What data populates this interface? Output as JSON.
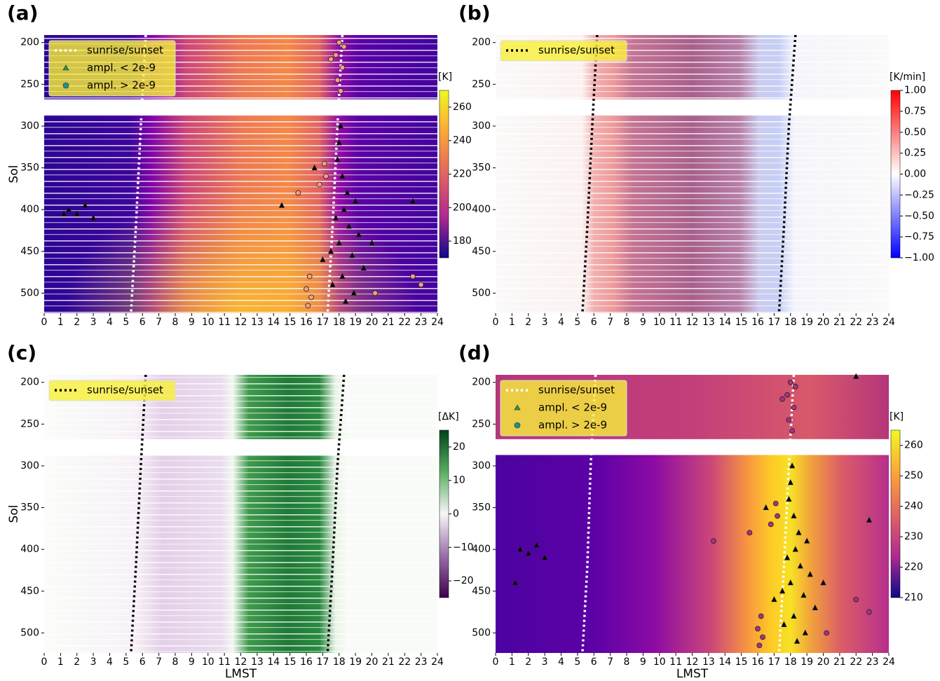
{
  "chart_data": [
    {
      "type": "heatmap",
      "panel_label": "(a)",
      "y_label": "Sol",
      "colormap": "plasma",
      "legend_loc": "upper left",
      "xlim": [
        0,
        24
      ],
      "xticks": [
        0,
        1,
        2,
        3,
        4,
        5,
        6,
        7,
        8,
        9,
        10,
        11,
        12,
        13,
        14,
        15,
        16,
        17,
        18,
        19,
        20,
        21,
        22,
        23,
        24
      ],
      "ylim": [
        524,
        191
      ],
      "yticks": [
        200,
        250,
        300,
        350,
        400,
        450,
        500
      ],
      "colorbar": {
        "label": "[K]",
        "lim": [
          170,
          270
        ],
        "ticks": [
          180,
          200,
          220,
          240,
          260
        ]
      },
      "missing_sols": [
        [
          268,
          287
        ]
      ],
      "series": [
        {
          "name": "sunrise/sunset",
          "color": "#ffffff",
          "linestyle": "dotted",
          "x": [
            6.2,
            5.9,
            5.6,
            5.3,
            null,
            18.2,
            17.9,
            17.6,
            17.3
          ],
          "y": [
            191,
            300,
            420,
            524,
            null,
            191,
            300,
            420,
            524
          ]
        },
        {
          "name": "ampl. < 2e-9",
          "color": "#000000",
          "legend_color": "#2a9a4a",
          "marker": "triangle",
          "x": [
            18.1,
            18.0,
            17.9,
            18.2,
            18.5,
            19.0,
            18.3,
            17.8,
            18.6,
            19.2,
            18.0,
            17.5,
            18.8,
            19.5,
            18.2,
            17.6,
            18.9,
            18.4,
            1.5,
            2.0,
            2.5,
            3.0,
            1.2,
            14.5,
            22.5,
            20.0,
            17.0,
            16.5
          ],
          "y": [
            300,
            320,
            340,
            360,
            380,
            390,
            400,
            410,
            420,
            430,
            440,
            450,
            455,
            470,
            480,
            490,
            500,
            510,
            400,
            405,
            395,
            410,
            405,
            395,
            390,
            440,
            460,
            350
          ]
        },
        {
          "name": "ampl. > 2e-9",
          "color": "#f4a07a",
          "legend_color": "#21918c",
          "marker": "circle",
          "x": [
            18.0,
            17.8,
            18.2,
            17.9,
            18.1,
            17.5,
            18.3,
            17.2,
            16.8,
            15.5,
            16.2,
            16.0,
            16.3,
            16.1,
            22.5,
            23.0,
            20.2,
            17.1
          ],
          "y": [
            200,
            215,
            230,
            245,
            258,
            220,
            205,
            360,
            370,
            380,
            480,
            495,
            505,
            515,
            480,
            490,
            500,
            345
          ]
        }
      ]
    },
    {
      "type": "heatmap",
      "panel_label": "(b)",
      "colormap": "bwr",
      "legend_loc": "upper left",
      "xlim": [
        0,
        24
      ],
      "xticks": [
        0,
        1,
        2,
        3,
        4,
        5,
        6,
        7,
        8,
        9,
        10,
        11,
        12,
        13,
        14,
        15,
        16,
        17,
        18,
        19,
        20,
        21,
        22,
        23,
        24
      ],
      "ylim": [
        524,
        191
      ],
      "yticks": [
        200,
        250,
        300,
        350,
        400,
        450,
        500
      ],
      "colorbar": {
        "label": "[K/min]",
        "lim": [
          -1,
          1
        ],
        "ticks": [
          {
            "value": 1,
            "label": "1.00"
          },
          {
            "value": 0.75,
            "label": "0.75"
          },
          {
            "value": 0.5,
            "label": "0.50"
          },
          {
            "value": 0.25,
            "label": "0.25"
          },
          {
            "value": 0,
            "label": "0.00"
          },
          {
            "value": -0.25,
            "label": "−0.25"
          },
          {
            "value": -0.5,
            "label": "−0.50"
          },
          {
            "value": -0.75,
            "label": "−0.75"
          },
          {
            "value": -1,
            "label": "−1.00"
          }
        ]
      },
      "missing_sols": [
        [
          268,
          287
        ]
      ],
      "series": [
        {
          "name": "sunrise/sunset",
          "color": "#000000",
          "linestyle": "dotted",
          "x": [
            6.2,
            5.9,
            5.6,
            5.3,
            null,
            18.3,
            17.9,
            17.6,
            17.3
          ],
          "y": [
            191,
            300,
            420,
            524,
            null,
            191,
            300,
            420,
            524
          ]
        }
      ]
    },
    {
      "type": "heatmap",
      "panel_label": "(c)",
      "y_label": "Sol",
      "x_label": "LMST",
      "colormap": "PRGn",
      "legend_loc": "upper left",
      "xlim": [
        0,
        24
      ],
      "xticks": [
        0,
        1,
        2,
        3,
        4,
        5,
        6,
        7,
        8,
        9,
        10,
        11,
        12,
        13,
        14,
        15,
        16,
        17,
        18,
        19,
        20,
        21,
        22,
        23,
        24
      ],
      "ylim": [
        524,
        191
      ],
      "yticks": [
        200,
        250,
        300,
        350,
        400,
        450,
        500
      ],
      "colorbar": {
        "label": "[ΔK]",
        "lim": [
          -25,
          25
        ],
        "ticks": [
          20,
          10,
          0,
          {
            "value": -10,
            "label": "−10"
          },
          {
            "value": -20,
            "label": "−20"
          }
        ]
      },
      "missing_sols": [
        [
          268,
          287
        ]
      ],
      "series": [
        {
          "name": "sunrise/sunset",
          "color": "#000000",
          "linestyle": "dotted",
          "x": [
            6.2,
            5.9,
            5.6,
            5.3,
            null,
            18.3,
            17.9,
            17.6,
            17.3
          ],
          "y": [
            191,
            300,
            420,
            524,
            null,
            191,
            300,
            420,
            524
          ]
        }
      ]
    },
    {
      "type": "heatmap",
      "panel_label": "(d)",
      "x_label": "LMST",
      "colormap": "plasma",
      "legend_loc": "upper left",
      "xlim": [
        0,
        24
      ],
      "xticks": [
        0,
        1,
        2,
        3,
        4,
        5,
        6,
        7,
        8,
        9,
        10,
        11,
        12,
        13,
        14,
        15,
        16,
        17,
        18,
        19,
        20,
        21,
        22,
        23,
        24
      ],
      "ylim": [
        524,
        191
      ],
      "yticks": [
        200,
        250,
        300,
        350,
        400,
        450,
        500
      ],
      "colorbar": {
        "label": "[K]",
        "lim": [
          210,
          265
        ],
        "ticks": [
          210,
          220,
          230,
          240,
          250,
          260
        ]
      },
      "missing_sols": [
        [
          268,
          287
        ]
      ],
      "series": [
        {
          "name": "sunrise/sunset",
          "color": "#ffffff",
          "linestyle": "dotted",
          "x": [
            6.1,
            5.8,
            5.6,
            5.3,
            null,
            18.2,
            17.9,
            17.6,
            17.3
          ],
          "y": [
            191,
            300,
            420,
            524,
            null,
            191,
            300,
            420,
            524
          ]
        },
        {
          "name": "ampl. < 2e-9",
          "color": "#000000",
          "legend_color": "#2a9a4a",
          "marker": "triangle",
          "x": [
            18.1,
            18.0,
            17.9,
            18.2,
            18.5,
            19.0,
            18.3,
            17.8,
            18.6,
            19.2,
            18.0,
            17.5,
            18.8,
            19.5,
            18.2,
            17.6,
            18.9,
            18.4,
            1.5,
            2.0,
            2.5,
            3.0,
            1.2,
            22.0,
            22.8,
            20.0,
            17.0,
            16.5
          ],
          "y": [
            300,
            320,
            340,
            360,
            380,
            390,
            400,
            410,
            420,
            430,
            440,
            450,
            455,
            470,
            480,
            490,
            500,
            510,
            400,
            405,
            395,
            410,
            440,
            193,
            365,
            440,
            460,
            350
          ]
        },
        {
          "name": "ampl. > 2e-9",
          "color": "#a8327f",
          "legend_color": "#21918c",
          "marker": "circle",
          "x": [
            18.0,
            17.8,
            18.2,
            17.9,
            18.1,
            17.5,
            18.3,
            17.2,
            16.8,
            15.5,
            16.2,
            16.0,
            16.3,
            16.1,
            22.0,
            22.8,
            20.2,
            17.1,
            13.3
          ],
          "y": [
            200,
            215,
            230,
            245,
            258,
            220,
            205,
            360,
            370,
            380,
            480,
            495,
            505,
            515,
            460,
            475,
            500,
            345,
            390
          ]
        }
      ]
    }
  ]
}
